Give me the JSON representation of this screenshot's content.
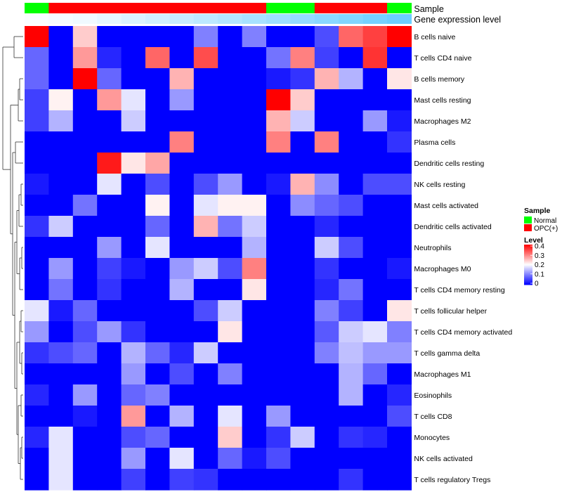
{
  "chart_data": {
    "type": "heatmap",
    "title": "",
    "annotation_tracks": [
      {
        "name": "Sample",
        "values": [
          "Normal",
          "OPC(+)",
          "OPC(+)",
          "OPC(+)",
          "OPC(+)",
          "OPC(+)",
          "OPC(+)",
          "OPC(+)",
          "OPC(+)",
          "OPC(+)",
          "Normal",
          "Normal",
          "OPC(+)",
          "OPC(+)",
          "OPC(+)",
          "Normal"
        ]
      },
      {
        "name": "Gene expression level",
        "values": [
          0.02,
          0.04,
          0.06,
          0.1,
          0.14,
          0.18,
          0.22,
          0.26,
          0.3,
          0.34,
          0.38,
          0.42,
          0.46,
          0.5,
          0.54,
          0.58
        ]
      }
    ],
    "rows": [
      "B cells naive",
      "T cells CD4 naive",
      "B cells memory",
      "Mast cells resting",
      "Macrophages M2",
      "Plasma cells",
      "Dendritic cells resting",
      "NK cells resting",
      "Mast cells activated",
      "Dendritic cells activated",
      "Neutrophils",
      "Macrophages M0",
      "T cells CD4 memory resting",
      "T cells follicular helper",
      "T cells CD4 memory activated",
      "T cells gamma delta",
      "Macrophages M1",
      "Eosinophils",
      "T cells CD8",
      "Monocytes",
      "NK cells activated",
      "T cells regulatory  Tregs"
    ],
    "values": [
      [
        0.4,
        0,
        0.24,
        0,
        0,
        0,
        0,
        0.1,
        0,
        0.1,
        0,
        0,
        0.06,
        0.32,
        0.35,
        0.4
      ],
      [
        0.08,
        0,
        0.28,
        0.03,
        0,
        0.32,
        0,
        0.34,
        0,
        0,
        0.09,
        0.3,
        0.05,
        0,
        0.36,
        0
      ],
      [
        0.08,
        0,
        0.4,
        0.08,
        0,
        0,
        0.26,
        0,
        0,
        0,
        0.02,
        0.04,
        0.26,
        0.14,
        0,
        0.22
      ],
      [
        0.05,
        0.21,
        0,
        0.28,
        0.18,
        0,
        0.12,
        0,
        0,
        0,
        0.4,
        0.24,
        0,
        0,
        0,
        0
      ],
      [
        0.05,
        0.14,
        0,
        0,
        0.16,
        0,
        0,
        0,
        0,
        0,
        0.26,
        0.16,
        0,
        0,
        0.12,
        0.02
      ],
      [
        0,
        0,
        0,
        0,
        0,
        0,
        0.3,
        0,
        0,
        0,
        0.3,
        0,
        0.3,
        0,
        0,
        0.04
      ],
      [
        0,
        0,
        0,
        0.38,
        0.22,
        0.27,
        0,
        0,
        0,
        0,
        0,
        0,
        0,
        0,
        0,
        0
      ],
      [
        0.02,
        0,
        0,
        0.18,
        0,
        0.06,
        0,
        0.06,
        0.12,
        0,
        0.02,
        0.26,
        0.11,
        0,
        0.06,
        0.06
      ],
      [
        0,
        0,
        0.09,
        0,
        0,
        0.21,
        0,
        0.18,
        0.21,
        0.21,
        0,
        0.11,
        0.08,
        0.06,
        0,
        0
      ],
      [
        0.04,
        0.16,
        0,
        0,
        0,
        0.08,
        0,
        0.26,
        0.09,
        0.16,
        0,
        0,
        0.03,
        0,
        0,
        0
      ],
      [
        0,
        0,
        0,
        0.12,
        0,
        0.18,
        0,
        0,
        0,
        0.14,
        0,
        0,
        0.16,
        0.06,
        0,
        0
      ],
      [
        0,
        0.12,
        0,
        0.05,
        0.02,
        0,
        0.12,
        0.16,
        0.06,
        0.3,
        0,
        0,
        0.04,
        0,
        0,
        0.02
      ],
      [
        0,
        0.09,
        0,
        0.04,
        0,
        0,
        0.14,
        0,
        0,
        0.22,
        0,
        0,
        0.03,
        0.09,
        0,
        0
      ],
      [
        0.18,
        0.02,
        0.08,
        0,
        0,
        0,
        0,
        0.06,
        0.16,
        0,
        0,
        0,
        0.1,
        0.05,
        0,
        0.22
      ],
      [
        0.12,
        0,
        0.06,
        0.12,
        0.04,
        0,
        0,
        0,
        0.22,
        0,
        0,
        0,
        0.07,
        0.16,
        0.18,
        0.1
      ],
      [
        0.04,
        0.06,
        0.08,
        0,
        0.14,
        0.08,
        0.03,
        0.16,
        0,
        0,
        0,
        0,
        0.1,
        0.15,
        0.12,
        0.12
      ],
      [
        0,
        0,
        0,
        0,
        0.12,
        0,
        0.06,
        0,
        0.1,
        0,
        0,
        0,
        0,
        0.14,
        0.08,
        0
      ],
      [
        0.03,
        0,
        0.12,
        0,
        0.08,
        0.1,
        0,
        0,
        0,
        0,
        0,
        0,
        0,
        0.14,
        0,
        0.03
      ],
      [
        0,
        0,
        0.02,
        0,
        0.28,
        0,
        0.14,
        0,
        0.18,
        0,
        0.12,
        0,
        0,
        0,
        0,
        0.06
      ],
      [
        0.03,
        0.18,
        0,
        0,
        0.06,
        0.08,
        0,
        0,
        0.24,
        0,
        0.04,
        0.16,
        0,
        0.04,
        0.03,
        0
      ],
      [
        0,
        0.18,
        0,
        0,
        0.12,
        0,
        0.18,
        0,
        0.08,
        0.02,
        0.06,
        0,
        0,
        0,
        0,
        0
      ],
      [
        0,
        0.18,
        0,
        0,
        0.05,
        0,
        0.05,
        0.04,
        0,
        0,
        0,
        0,
        0,
        0.04,
        0,
        0
      ]
    ],
    "color_scale": {
      "min": 0,
      "max": 0.4,
      "low": "#0000ff",
      "mid": "#ffffff",
      "high": "#ff0000"
    },
    "legends": [
      {
        "title": "Sample",
        "items": [
          {
            "label": "Normal",
            "color": "#00ff00"
          },
          {
            "label": "OPC(+)",
            "color": "#ff0000"
          }
        ]
      },
      {
        "title": "Level",
        "ticks": [
          "0.4",
          "0.3",
          "0.2",
          "0.1",
          "0"
        ]
      }
    ],
    "row_dendrogram": true,
    "legend_placement": "right"
  }
}
